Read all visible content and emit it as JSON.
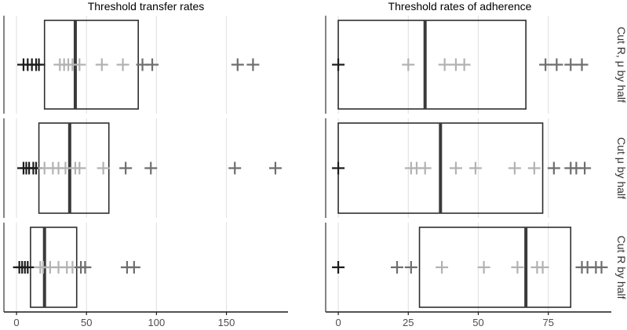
{
  "chart_data": [
    {
      "type": "box",
      "title": "Threshold transfer rates",
      "xlabel": "",
      "ylabel": "",
      "xlim": [
        -9,
        194
      ],
      "x_ticks": [
        0,
        50,
        100,
        150
      ],
      "x_tick_labels": [
        "0",
        "50",
        "100",
        "150"
      ],
      "grid": true,
      "rows": [
        {
          "strip_label": "Cut R, μ by half",
          "box": {
            "q1": 20,
            "median": 42,
            "q3": 87
          },
          "points": [
            {
              "value": 5,
              "shade": "dark"
            },
            {
              "value": 8,
              "shade": "dark"
            },
            {
              "value": 11,
              "shade": "dark"
            },
            {
              "value": 14,
              "shade": "dark"
            },
            {
              "value": 16,
              "shade": "dark"
            },
            {
              "value": 31,
              "shade": "light"
            },
            {
              "value": 34,
              "shade": "light"
            },
            {
              "value": 37,
              "shade": "light"
            },
            {
              "value": 40,
              "shade": "light"
            },
            {
              "value": 45,
              "shade": "light"
            },
            {
              "value": 61,
              "shade": "light"
            },
            {
              "value": 76,
              "shade": "light"
            },
            {
              "value": 90,
              "shade": "mid"
            },
            {
              "value": 97,
              "shade": "mid"
            },
            {
              "value": 158,
              "shade": "mid"
            },
            {
              "value": 169,
              "shade": "mid"
            }
          ]
        },
        {
          "strip_label": "Cut μ by half",
          "box": {
            "q1": 16,
            "median": 38,
            "q3": 66
          },
          "points": [
            {
              "value": 5,
              "shade": "dark"
            },
            {
              "value": 7,
              "shade": "dark"
            },
            {
              "value": 9,
              "shade": "dark"
            },
            {
              "value": 12,
              "shade": "dark"
            },
            {
              "value": 14,
              "shade": "dark"
            },
            {
              "value": 20,
              "shade": "light"
            },
            {
              "value": 26,
              "shade": "light"
            },
            {
              "value": 30,
              "shade": "light"
            },
            {
              "value": 35,
              "shade": "light"
            },
            {
              "value": 42,
              "shade": "light"
            },
            {
              "value": 45,
              "shade": "light"
            },
            {
              "value": 62,
              "shade": "light"
            },
            {
              "value": 78,
              "shade": "mid"
            },
            {
              "value": 96,
              "shade": "mid"
            },
            {
              "value": 156,
              "shade": "mid"
            },
            {
              "value": 185,
              "shade": "mid"
            }
          ]
        },
        {
          "strip_label": "Cut R by half",
          "box": {
            "q1": 10,
            "median": 20,
            "q3": 43
          },
          "points": [
            {
              "value": 2,
              "shade": "dark"
            },
            {
              "value": 4,
              "shade": "dark"
            },
            {
              "value": 6,
              "shade": "dark"
            },
            {
              "value": 8,
              "shade": "dark"
            },
            {
              "value": 17,
              "shade": "light"
            },
            {
              "value": 19,
              "shade": "light"
            },
            {
              "value": 24,
              "shade": "light"
            },
            {
              "value": 30,
              "shade": "light"
            },
            {
              "value": 36,
              "shade": "light"
            },
            {
              "value": 40,
              "shade": "light"
            },
            {
              "value": 46,
              "shade": "mid"
            },
            {
              "value": 49,
              "shade": "mid"
            },
            {
              "value": 79,
              "shade": "mid"
            },
            {
              "value": 84,
              "shade": "mid"
            }
          ]
        }
      ]
    },
    {
      "type": "box",
      "title": "Threshold rates of adherence",
      "xlabel": "",
      "ylabel": "",
      "xlim": [
        -4.5,
        97.5
      ],
      "x_ticks": [
        0,
        25,
        50,
        75
      ],
      "x_tick_labels": [
        "0",
        "25",
        "50",
        "75"
      ],
      "grid": true,
      "rows": [
        {
          "strip_label": "Cut R, μ by half",
          "box": {
            "q1": 0,
            "median": 31,
            "q3": 67
          },
          "points": [
            {
              "value": 0,
              "shade": "dark"
            },
            {
              "value": 25,
              "shade": "light"
            },
            {
              "value": 38,
              "shade": "light"
            },
            {
              "value": 42,
              "shade": "light"
            },
            {
              "value": 45,
              "shade": "light"
            },
            {
              "value": 74,
              "shade": "mid"
            },
            {
              "value": 78,
              "shade": "mid"
            },
            {
              "value": 83,
              "shade": "mid"
            },
            {
              "value": 87,
              "shade": "mid"
            }
          ]
        },
        {
          "strip_label": "Cut μ by half",
          "box": {
            "q1": 0,
            "median": 36.5,
            "q3": 73
          },
          "points": [
            {
              "value": 0,
              "shade": "dark"
            },
            {
              "value": 26,
              "shade": "light"
            },
            {
              "value": 28,
              "shade": "light"
            },
            {
              "value": 31,
              "shade": "light"
            },
            {
              "value": 42,
              "shade": "light"
            },
            {
              "value": 49,
              "shade": "light"
            },
            {
              "value": 63,
              "shade": "light"
            },
            {
              "value": 70,
              "shade": "light"
            },
            {
              "value": 77,
              "shade": "mid"
            },
            {
              "value": 83,
              "shade": "mid"
            },
            {
              "value": 85,
              "shade": "mid"
            },
            {
              "value": 88,
              "shade": "mid"
            }
          ]
        },
        {
          "strip_label": "Cut R by half",
          "box": {
            "q1": 29,
            "median": 67,
            "q3": 83
          },
          "points": [
            {
              "value": 0,
              "shade": "dark"
            },
            {
              "value": 21,
              "shade": "mid"
            },
            {
              "value": 26,
              "shade": "mid"
            },
            {
              "value": 37,
              "shade": "light"
            },
            {
              "value": 52,
              "shade": "light"
            },
            {
              "value": 64,
              "shade": "light"
            },
            {
              "value": 71,
              "shade": "light"
            },
            {
              "value": 73,
              "shade": "light"
            },
            {
              "value": 87,
              "shade": "mid"
            },
            {
              "value": 89,
              "shade": "mid"
            },
            {
              "value": 92,
              "shade": "mid"
            },
            {
              "value": 94,
              "shade": "mid"
            }
          ]
        }
      ]
    }
  ],
  "colors": {
    "panel_border": "#333333",
    "axis": "#1a1a1a",
    "grid": "#e3e3e3",
    "box_line": "#2e2e2e",
    "median": "#3a3a3a",
    "point_dark": "#1c1c1c",
    "point_mid": "#6e6e6e",
    "point_light": "#b2b2b2",
    "text": "#333333",
    "tick_label": "#4d4d4d"
  }
}
